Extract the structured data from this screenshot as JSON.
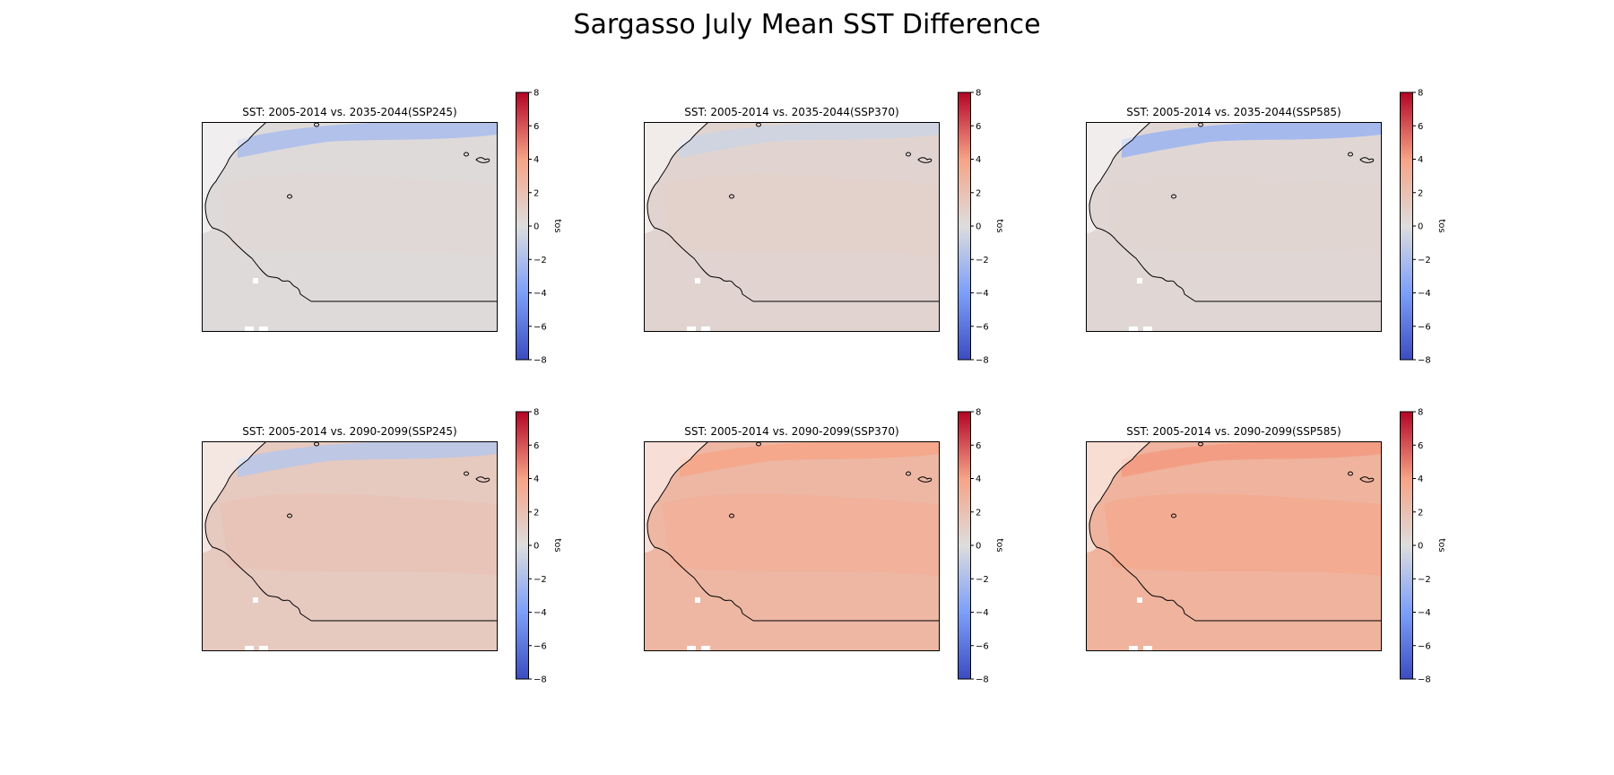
{
  "figure": {
    "title": "Sargasso July Mean SST Difference"
  },
  "colorbar": {
    "label": "tos",
    "range": [
      -8,
      8
    ],
    "ticks": [
      8,
      6,
      4,
      2,
      0,
      -2,
      -4,
      -6,
      -8
    ],
    "colormap": "coolwarm"
  },
  "panels": [
    {
      "title": "SST: 2005-2014 vs. 2035-2044(SSP245)",
      "background_value": 0.2,
      "warm_core_value": 0.4,
      "north_band_value": -2.0
    },
    {
      "title": "SST: 2005-2014 vs. 2035-2044(SSP370)",
      "background_value": 0.6,
      "warm_core_value": 0.9,
      "north_band_value": -0.6
    },
    {
      "title": "SST: 2005-2014 vs. 2035-2044(SSP585)",
      "background_value": 0.4,
      "warm_core_value": 0.6,
      "north_band_value": -2.5
    },
    {
      "title": "SST: 2005-2014 vs. 2090-2099(SSP245)",
      "background_value": 1.4,
      "warm_core_value": 1.8,
      "north_band_value": -1.5
    },
    {
      "title": "SST: 2005-2014 vs. 2090-2099(SSP370)",
      "background_value": 2.6,
      "warm_core_value": 3.2,
      "north_band_value": 3.8
    },
    {
      "title": "SST: 2005-2014 vs. 2090-2099(SSP585)",
      "background_value": 2.9,
      "warm_core_value": 3.6,
      "north_band_value": 4.2
    }
  ]
}
